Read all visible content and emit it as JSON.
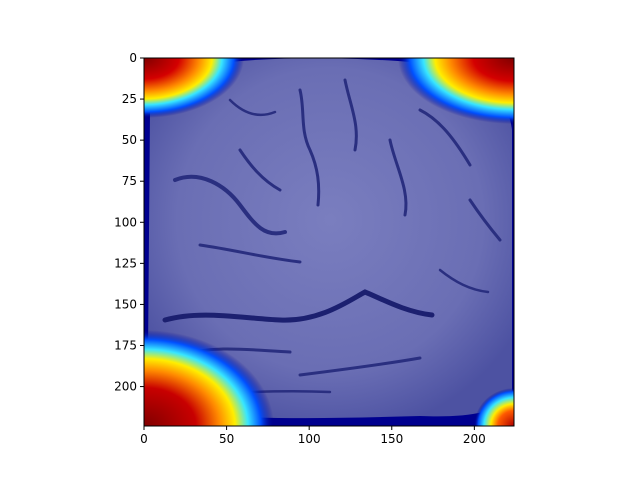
{
  "figure": {
    "image_description": "Brain MRI slice with a jet-colormap heatmap overlay (mostly dark blue over brain tissue; red/yellow/cyan hotspots at the four corners)",
    "colormap": "jet",
    "colors": {
      "tissue_tint": "#6e72b8",
      "tissue_dark": "#2a2f80",
      "background_blue": "#00008f",
      "hot_red": "#800000",
      "hot_red_bright": "#d40000",
      "hot_orange": "#ff8a00",
      "hot_yellow": "#ffee00",
      "hot_cyan": "#38e6ff",
      "hot_blue": "#0050ff"
    }
  },
  "chart_data": {
    "type": "image",
    "title": "",
    "xlabel": "",
    "ylabel": "",
    "xlim": [
      0,
      224
    ],
    "ylim": [
      224,
      0
    ],
    "x_ticks": [
      {
        "value": 0,
        "label": "0"
      },
      {
        "value": 50,
        "label": "50"
      },
      {
        "value": 100,
        "label": "100"
      },
      {
        "value": 150,
        "label": "150"
      },
      {
        "value": 200,
        "label": "200"
      }
    ],
    "y_ticks": [
      {
        "value": 0,
        "label": "0"
      },
      {
        "value": 25,
        "label": "25"
      },
      {
        "value": 50,
        "label": "50"
      },
      {
        "value": 75,
        "label": "75"
      },
      {
        "value": 100,
        "label": "100"
      },
      {
        "value": 125,
        "label": "125"
      },
      {
        "value": 150,
        "label": "150"
      },
      {
        "value": 175,
        "label": "175"
      },
      {
        "value": 200,
        "label": "200"
      }
    ],
    "grid": false
  }
}
